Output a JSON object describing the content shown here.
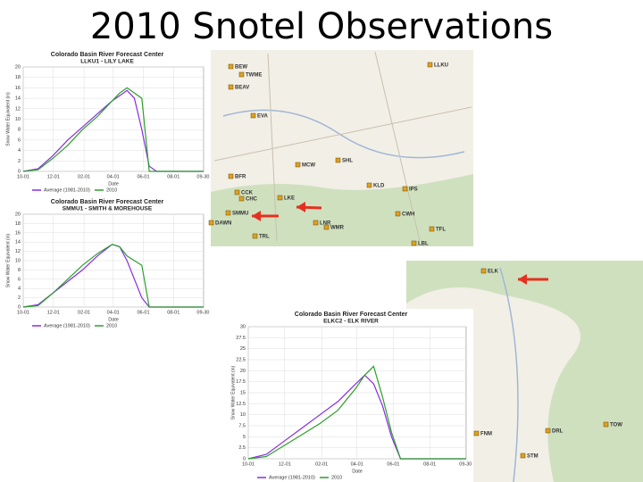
{
  "title": "2010 Snotel Observations",
  "chart_data": [
    {
      "type": "line",
      "title": "Colorado Basin River Forecast Center",
      "subtitle": "LLKU1 - LILY LAKE",
      "x_label": "Date",
      "y_label": "Snow Water Equivalent (in)",
      "x": [
        0,
        30,
        60,
        90,
        120,
        150,
        180,
        195,
        210,
        225,
        240,
        255,
        270,
        300,
        330,
        365
      ],
      "xlim": [
        0,
        365
      ],
      "xticks": [
        {
          "value": 0,
          "label": "10-01"
        },
        {
          "value": 61,
          "label": "12-01"
        },
        {
          "value": 123,
          "label": "02-01"
        },
        {
          "value": 182,
          "label": "04-01"
        },
        {
          "value": 243,
          "label": "06-01"
        },
        {
          "value": 304,
          "label": "08-01"
        },
        {
          "value": 364,
          "label": "09-30"
        }
      ],
      "ylim": [
        0,
        20
      ],
      "yticks": [
        0,
        2,
        4,
        6,
        8,
        10,
        12,
        14,
        16,
        18,
        20
      ],
      "grid": true,
      "series": [
        {
          "name": "Average (1981-2010)",
          "color": "#8a2be2",
          "values": [
            0,
            0.5,
            3,
            6,
            8.5,
            11,
            13.5,
            14.5,
            15.5,
            14,
            8,
            1,
            0,
            0,
            0,
            0
          ]
        },
        {
          "name": "2010",
          "color": "#2ca02c",
          "values": [
            0,
            0.3,
            2.5,
            5,
            8,
            10.5,
            13.5,
            15,
            16,
            15,
            14,
            0,
            0,
            0,
            0,
            0
          ]
        }
      ]
    },
    {
      "type": "line",
      "title": "Colorado Basin River Forecast Center",
      "subtitle": "SMMU1 - SMITH & MOREHOUSE",
      "x_label": "Date",
      "y_label": "Snow Water Equivalent (in)",
      "x": [
        0,
        30,
        60,
        90,
        120,
        150,
        180,
        195,
        210,
        225,
        240,
        255,
        270,
        300,
        330,
        365
      ],
      "xlim": [
        0,
        365
      ],
      "xticks": [
        {
          "value": 0,
          "label": "10-01"
        },
        {
          "value": 61,
          "label": "12-01"
        },
        {
          "value": 123,
          "label": "02-01"
        },
        {
          "value": 182,
          "label": "04-01"
        },
        {
          "value": 243,
          "label": "06-01"
        },
        {
          "value": 304,
          "label": "08-01"
        },
        {
          "value": 364,
          "label": "09-30"
        }
      ],
      "ylim": [
        0,
        20
      ],
      "yticks": [
        0,
        2,
        4,
        6,
        8,
        10,
        12,
        14,
        16,
        18,
        20
      ],
      "grid": true,
      "series": [
        {
          "name": "Average (1981-2010)",
          "color": "#8a2be2",
          "values": [
            0,
            0.5,
            3,
            5.5,
            8,
            11,
            13.5,
            13,
            10,
            6,
            2,
            0,
            0,
            0,
            0,
            0
          ]
        },
        {
          "name": "2010",
          "color": "#2ca02c",
          "values": [
            0,
            0.3,
            3,
            6,
            9,
            11.5,
            13.5,
            13,
            11,
            10,
            9,
            0,
            0,
            0,
            0,
            0
          ]
        }
      ]
    },
    {
      "type": "line",
      "title": "Colorado Basin River Forecast Center",
      "subtitle": "ELKC2 - ELK RIVER",
      "x_label": "Date",
      "y_label": "Snow Water Equivalent (in)",
      "x": [
        0,
        30,
        60,
        90,
        120,
        150,
        180,
        195,
        210,
        225,
        240,
        255,
        270,
        300,
        330,
        365
      ],
      "xlim": [
        0,
        365
      ],
      "xticks": [
        {
          "value": 0,
          "label": "10-01"
        },
        {
          "value": 61,
          "label": "12-01"
        },
        {
          "value": 123,
          "label": "02-01"
        },
        {
          "value": 182,
          "label": "04-01"
        },
        {
          "value": 243,
          "label": "06-01"
        },
        {
          "value": 304,
          "label": "08-01"
        },
        {
          "value": 364,
          "label": "09-30"
        }
      ],
      "ylim": [
        0,
        30
      ],
      "yticks": [
        0,
        2.5,
        5,
        7.5,
        10,
        12.5,
        15,
        17.5,
        20,
        22.5,
        25,
        27.5,
        30
      ],
      "grid": true,
      "series": [
        {
          "name": "Average (1981-2010)",
          "color": "#8a2be2",
          "values": [
            0,
            1,
            4,
            7,
            10,
            13,
            17,
            19,
            17,
            12,
            5,
            0,
            0,
            0,
            0,
            0
          ]
        },
        {
          "name": "2010",
          "color": "#2ca02c",
          "values": [
            0,
            0.5,
            3,
            5.5,
            8,
            11,
            16,
            19,
            21,
            14,
            6,
            0,
            0,
            0,
            0,
            0
          ]
        }
      ]
    }
  ],
  "maps": [
    {
      "labels": [
        "BEW",
        "TWME",
        "BEAV",
        "LLKU",
        "EVA",
        "MCW",
        "SHL",
        "BFR",
        "CCK",
        "CHC",
        "LKE",
        "SMMU",
        "DAWN",
        "TRL",
        "KLD",
        "IPS",
        "LNR",
        "WMR",
        "TFL",
        "CWH",
        "LBL"
      ]
    },
    {
      "labels": [
        "ELK",
        "FNM",
        "DRL",
        "TOW",
        "STM"
      ]
    }
  ]
}
